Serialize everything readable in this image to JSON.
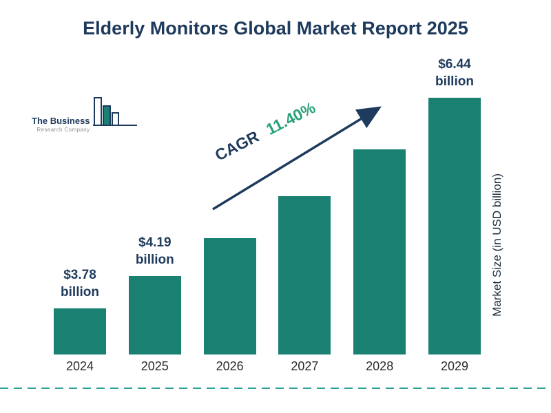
{
  "page": {
    "title": "Elderly Monitors Global Market Report 2025"
  },
  "logo": {
    "line1": "The Business",
    "line2": "Research Company"
  },
  "annotation": {
    "cagr_label": "CAGR",
    "cagr_value": "11.40%"
  },
  "axis": {
    "y_label": "Market Size (in USD billion)"
  },
  "colors": {
    "bar": "#1a8072",
    "navy": "#1e3a5c",
    "cagr_green": "#27a17a",
    "dashed_line": "#2aa198"
  },
  "chart_data": {
    "type": "bar",
    "title": "Elderly Monitors Global Market Report 2025",
    "categories": [
      "2024",
      "2025",
      "2026",
      "2027",
      "2028",
      "2029"
    ],
    "values": [
      3.78,
      4.19,
      4.67,
      5.2,
      5.79,
      6.44
    ],
    "bar_labels": [
      "$3.78 billion",
      "$4.19 billion",
      "",
      "",
      "",
      "$6.44 billion"
    ],
    "cagr": "11.40%",
    "xlabel": "",
    "ylabel": "Market Size (in USD billion)",
    "legend": "none",
    "grid": "off",
    "unit": "USD billion"
  }
}
